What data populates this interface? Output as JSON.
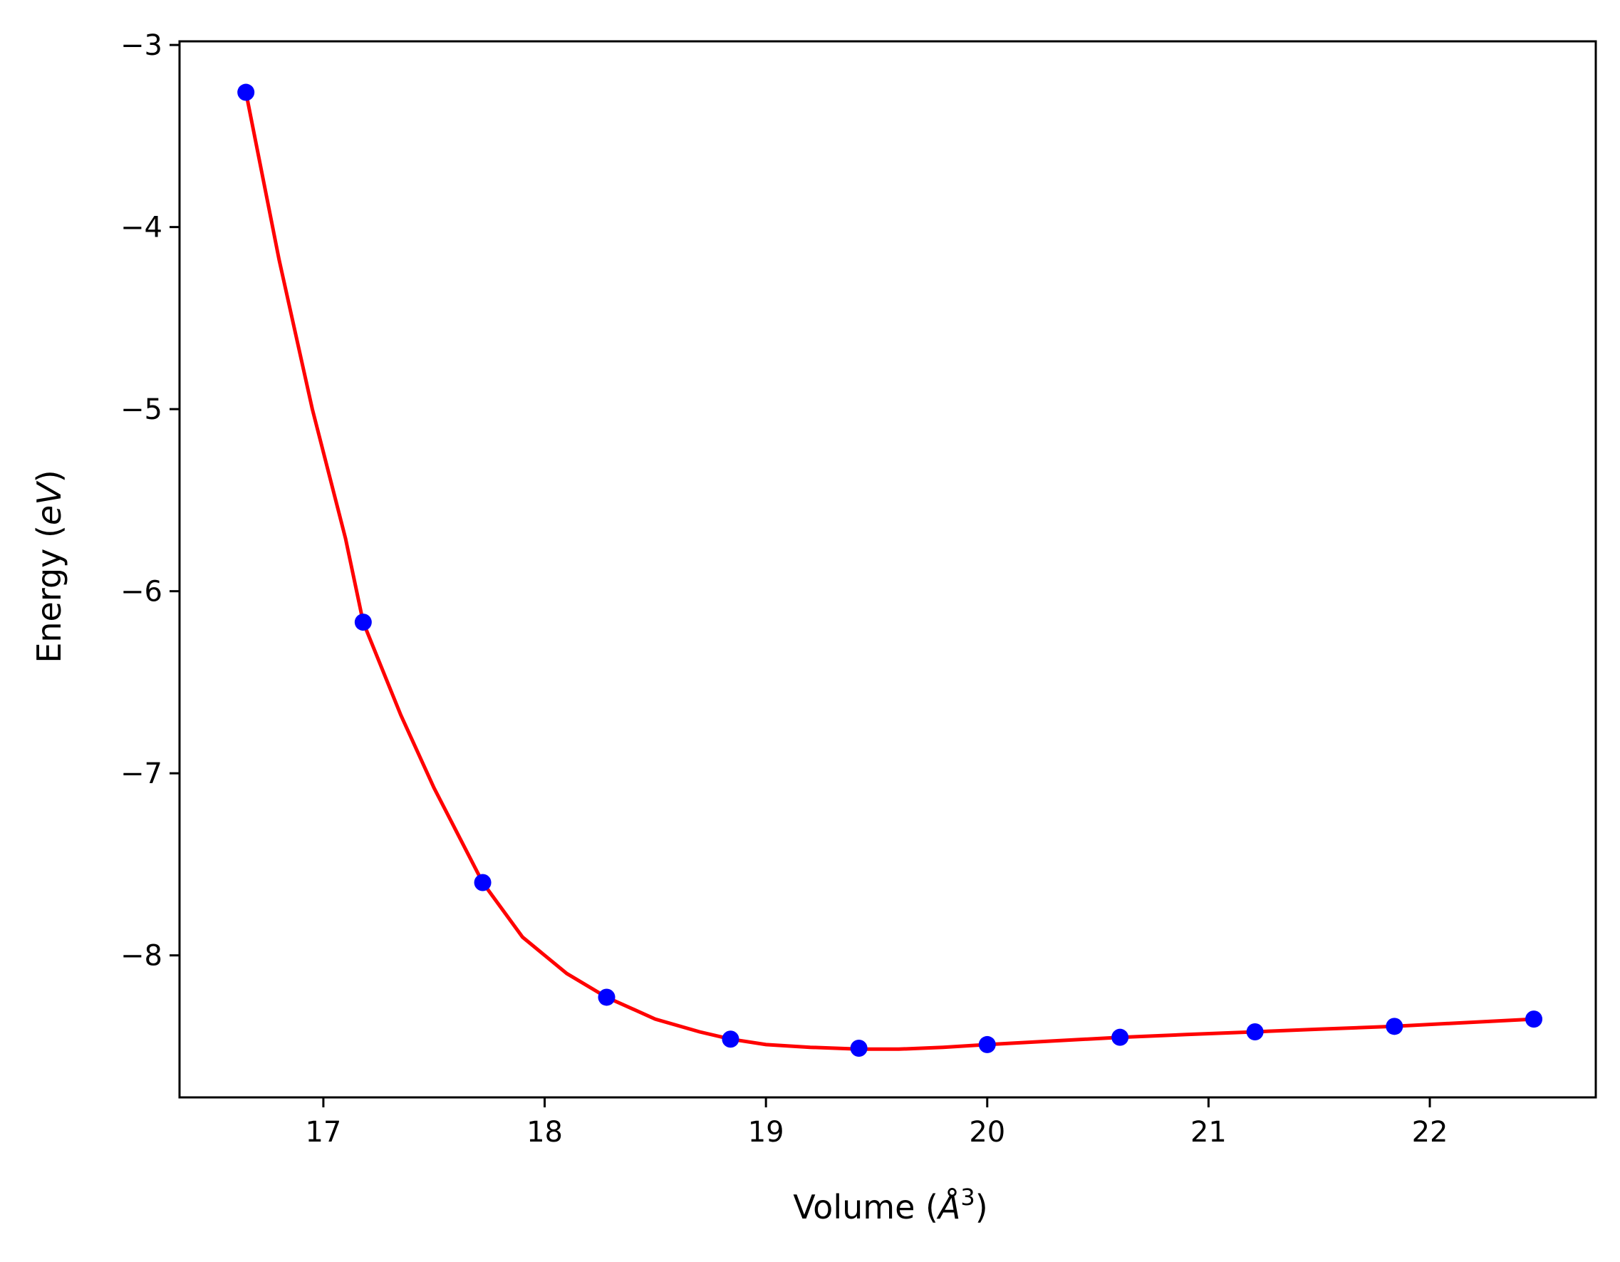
{
  "chart_data": {
    "type": "scatter",
    "title": "",
    "xlabel": "Volume (Å³)",
    "ylabel": "Energy (eV)",
    "xlabel_parts": {
      "prefix": "Volume (",
      "symbol": "Å",
      "sup": "3",
      "suffix": ")"
    },
    "ylabel_parts": {
      "prefix": "Energy (",
      "unit": "eV",
      "suffix": ")"
    },
    "xlim": [
      16.35,
      22.75
    ],
    "ylim": [
      -8.78,
      -2.98
    ],
    "xticks": [
      17,
      18,
      19,
      20,
      21,
      22
    ],
    "yticks": [
      -8,
      -7,
      -6,
      -5,
      -4,
      -3
    ],
    "xtick_labels": [
      "17",
      "18",
      "19",
      "20",
      "21",
      "22"
    ],
    "ytick_labels": [
      "−8",
      "−7",
      "−6",
      "−5",
      "−4",
      "−3"
    ],
    "grid": false,
    "legend": "none",
    "series": [
      {
        "kind": "points",
        "color": "#0000ff",
        "x": [
          16.65,
          17.18,
          17.72,
          18.28,
          18.84,
          19.42,
          20.0,
          20.6,
          21.21,
          21.84,
          22.47
        ],
        "y": [
          -3.26,
          -6.17,
          -7.6,
          -8.23,
          -8.46,
          -8.51,
          -8.49,
          -8.45,
          -8.42,
          -8.39,
          -8.35
        ]
      },
      {
        "kind": "fit-curve",
        "color": "#ff0000",
        "x": [
          16.65,
          16.8,
          16.95,
          17.1,
          17.18,
          17.35,
          17.5,
          17.72,
          17.9,
          18.1,
          18.28,
          18.5,
          18.7,
          18.84,
          19.0,
          19.2,
          19.42,
          19.6,
          19.8,
          20.0,
          20.3,
          20.6,
          20.9,
          21.21,
          21.5,
          21.84,
          22.15,
          22.47
        ],
        "y": [
          -3.26,
          -4.18,
          -5.0,
          -5.71,
          -6.17,
          -6.68,
          -7.08,
          -7.6,
          -7.9,
          -8.1,
          -8.23,
          -8.35,
          -8.42,
          -8.46,
          -8.49,
          -8.505,
          -8.515,
          -8.515,
          -8.505,
          -8.49,
          -8.47,
          -8.45,
          -8.435,
          -8.42,
          -8.405,
          -8.39,
          -8.37,
          -8.35
        ]
      }
    ]
  }
}
